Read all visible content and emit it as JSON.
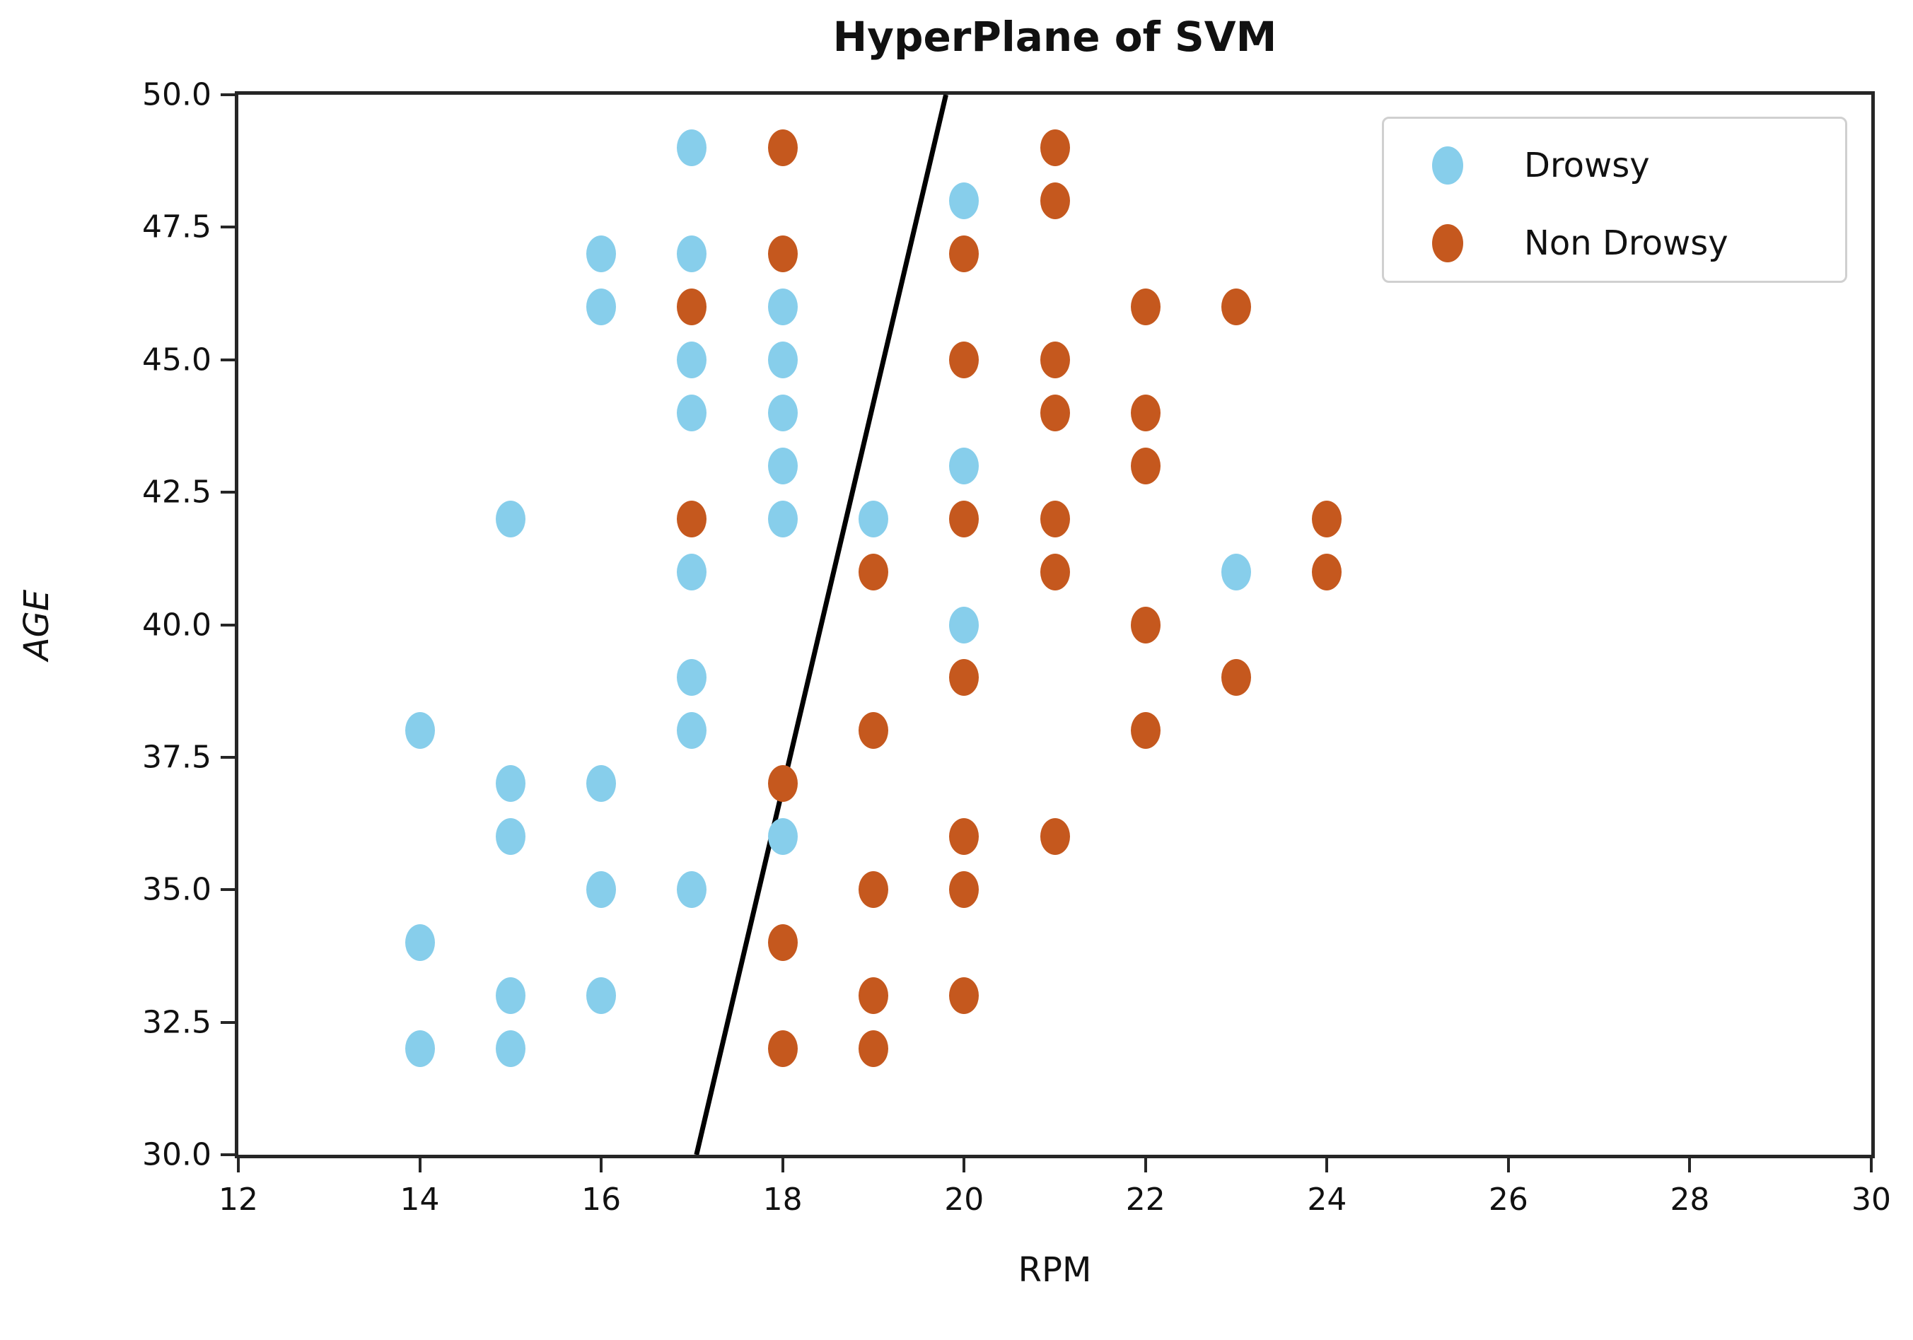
{
  "title": "HyperPlane of SVM",
  "colors": {
    "drowsy": "#87CEEB",
    "non_drowsy": "#C5581E",
    "hyperplane": "#000000",
    "axis": "#262626",
    "text": "#111111",
    "legend_border": "#d0d0d0"
  },
  "legend": {
    "position": "upper right",
    "items": [
      {
        "label": "Drowsy",
        "color": "#87CEEB"
      },
      {
        "label": "Non Drowsy",
        "color": "#C5581E"
      }
    ]
  },
  "chart_data": {
    "type": "scatter",
    "title": "HyperPlane of SVM",
    "xlabel": "RPM",
    "ylabel": "AGE",
    "xlim": [
      12,
      30
    ],
    "ylim": [
      30,
      50
    ],
    "xtick_labels": [
      "12",
      "14",
      "16",
      "18",
      "20",
      "22",
      "24",
      "26",
      "28",
      "30"
    ],
    "xtick_values": [
      12,
      14,
      16,
      18,
      20,
      22,
      24,
      26,
      28,
      30
    ],
    "ytick_labels": [
      "30.0",
      "32.5",
      "35.0",
      "37.5",
      "40.0",
      "42.5",
      "45.0",
      "47.5",
      "50.0"
    ],
    "ytick_values": [
      30,
      32.5,
      35,
      37.5,
      40,
      42.5,
      45,
      47.5,
      50
    ],
    "grid": false,
    "legend_position": "upper right",
    "series": [
      {
        "name": "Drowsy",
        "color": "#87CEEB",
        "points": [
          [
            17,
            49
          ],
          [
            20,
            48
          ],
          [
            16,
            47
          ],
          [
            17,
            47
          ],
          [
            16,
            46
          ],
          [
            18,
            46
          ],
          [
            17,
            45
          ],
          [
            18,
            45
          ],
          [
            17,
            44
          ],
          [
            18,
            44
          ],
          [
            18,
            43
          ],
          [
            20,
            43
          ],
          [
            15,
            42
          ],
          [
            18,
            42
          ],
          [
            19,
            42
          ],
          [
            17,
            41
          ],
          [
            23,
            41
          ],
          [
            20,
            40
          ],
          [
            17,
            39
          ],
          [
            14,
            38
          ],
          [
            17,
            38
          ],
          [
            15,
            37
          ],
          [
            16,
            37
          ],
          [
            15,
            36
          ],
          [
            18,
            36
          ],
          [
            16,
            35
          ],
          [
            17,
            35
          ],
          [
            14,
            34
          ],
          [
            15,
            33
          ],
          [
            16,
            33
          ],
          [
            14,
            32
          ],
          [
            15,
            32
          ]
        ]
      },
      {
        "name": "Non Drowsy",
        "color": "#C5581E",
        "points": [
          [
            18,
            49
          ],
          [
            21,
            49
          ],
          [
            21,
            48
          ],
          [
            18,
            47
          ],
          [
            20,
            47
          ],
          [
            17,
            46
          ],
          [
            22,
            46
          ],
          [
            23,
            46
          ],
          [
            20,
            45
          ],
          [
            21,
            45
          ],
          [
            21,
            44
          ],
          [
            22,
            44
          ],
          [
            22,
            43
          ],
          [
            17,
            42
          ],
          [
            20,
            42
          ],
          [
            21,
            42
          ],
          [
            24,
            42
          ],
          [
            19,
            41
          ],
          [
            21,
            41
          ],
          [
            24,
            41
          ],
          [
            22,
            40
          ],
          [
            20,
            39
          ],
          [
            23,
            39
          ],
          [
            19,
            38
          ],
          [
            22,
            38
          ],
          [
            18,
            37
          ],
          [
            20,
            36
          ],
          [
            21,
            36
          ],
          [
            19,
            35
          ],
          [
            20,
            35
          ],
          [
            18,
            34
          ],
          [
            19,
            33
          ],
          [
            20,
            33
          ],
          [
            18,
            32
          ],
          [
            19,
            32
          ]
        ]
      }
    ],
    "hyperplane_line": {
      "x1": 17.05,
      "y1": 30,
      "x2": 19.8,
      "y2": 50
    }
  }
}
